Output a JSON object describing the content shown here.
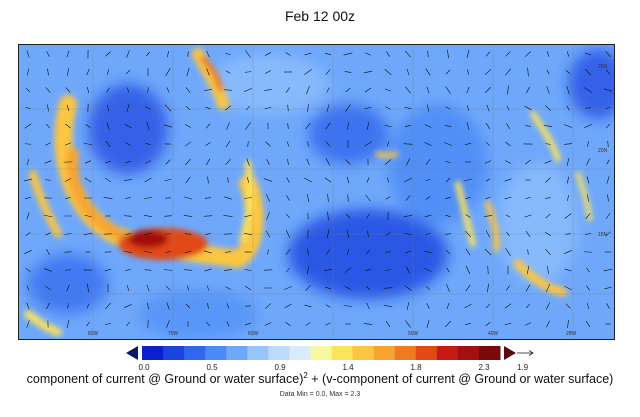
{
  "title": "Feb 12 00z",
  "map": {
    "lat_labels": [
      "25N",
      "20N",
      "15N"
    ],
    "lon_labels": [
      "80W",
      "70W",
      "60W",
      "50W",
      "40W",
      "28W"
    ],
    "field": "current speed",
    "vectors": "current direction arrows"
  },
  "colorbar": {
    "ticks": [
      "0.0",
      "0.5",
      "0.9",
      "1.4",
      "1.8",
      "2.3"
    ],
    "colors": [
      "#0a1fd0",
      "#1a44e0",
      "#2f67ee",
      "#4a8af5",
      "#6fa8fb",
      "#96c4fd",
      "#bbdafd",
      "#d9ecfe",
      "#f6f9a0",
      "#fde35a",
      "#fcc640",
      "#f7a530",
      "#ef7a22",
      "#e14a17",
      "#c61a12",
      "#a4100f",
      "#7a0a0a"
    ],
    "under_color": "#0a1866",
    "over_color": "#5a0a0a"
  },
  "vector_ref": {
    "value": "1.9"
  },
  "expression": {
    "part1": "component of current @ Ground or water surface)",
    "exp": "2",
    "part2": " + (v-component of current @ Ground or water surface)"
  },
  "stats": "Data Min = 0.0, Max = 2.3"
}
